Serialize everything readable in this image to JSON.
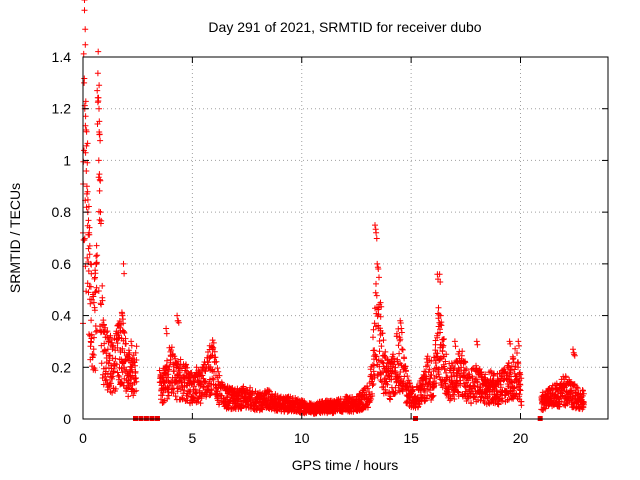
{
  "chart_data": {
    "type": "scatter",
    "title": "Day 291 of 2021, SRMTID for receiver dubo",
    "xlabel": "GPS time / hours",
    "ylabel": "SRMTID / TECUs",
    "xlim": [
      0,
      24
    ],
    "ylim": [
      0,
      1.4
    ],
    "xticks": [
      0,
      5,
      10,
      15,
      20
    ],
    "xtick_labels": [
      "0",
      "5",
      "10",
      "15",
      "20"
    ],
    "yticks": [
      0,
      0.2,
      0.4,
      0.6,
      0.8,
      1.0,
      1.2,
      1.4
    ],
    "ytick_labels": [
      "0",
      "0.2",
      "0.4",
      "0.6",
      "0.8",
      "1",
      "1.2",
      "1.4"
    ],
    "grid": true,
    "marker": "+",
    "color": "#ff0000",
    "series": [
      {
        "name": "SRMTID",
        "trend": [
          [
            0.0,
            0.62
          ],
          [
            0.05,
            1.25
          ],
          [
            0.12,
            0.95
          ],
          [
            0.2,
            0.75
          ],
          [
            0.3,
            0.55
          ],
          [
            0.4,
            0.42
          ],
          [
            0.5,
            0.35
          ],
          [
            0.6,
            0.45
          ],
          [
            0.7,
            1.15
          ],
          [
            0.8,
            0.6
          ],
          [
            0.9,
            0.3
          ],
          [
            1.0,
            0.25
          ],
          [
            1.2,
            0.23
          ],
          [
            1.4,
            0.22
          ],
          [
            1.6,
            0.26
          ],
          [
            1.8,
            0.3
          ],
          [
            2.0,
            0.2
          ],
          [
            2.2,
            0.17
          ],
          [
            2.4,
            0.2
          ],
          [
            3.5,
            0.13
          ],
          [
            3.8,
            0.14
          ],
          [
            4.0,
            0.22
          ],
          [
            4.2,
            0.17
          ],
          [
            4.5,
            0.16
          ],
          [
            4.8,
            0.14
          ],
          [
            5.0,
            0.12
          ],
          [
            5.2,
            0.14
          ],
          [
            5.4,
            0.13
          ],
          [
            5.6,
            0.16
          ],
          [
            5.8,
            0.2
          ],
          [
            6.0,
            0.22
          ],
          [
            6.2,
            0.12
          ],
          [
            6.5,
            0.09
          ],
          [
            7.0,
            0.08
          ],
          [
            7.5,
            0.09
          ],
          [
            8.0,
            0.07
          ],
          [
            8.5,
            0.08
          ],
          [
            9.0,
            0.06
          ],
          [
            9.5,
            0.06
          ],
          [
            10.0,
            0.05
          ],
          [
            10.5,
            0.04
          ],
          [
            11.0,
            0.05
          ],
          [
            11.5,
            0.05
          ],
          [
            12.0,
            0.06
          ],
          [
            12.5,
            0.06
          ],
          [
            13.0,
            0.09
          ],
          [
            13.2,
            0.15
          ],
          [
            13.4,
            0.4
          ],
          [
            13.6,
            0.28
          ],
          [
            13.8,
            0.2
          ],
          [
            14.0,
            0.15
          ],
          [
            14.2,
            0.18
          ],
          [
            14.4,
            0.25
          ],
          [
            14.6,
            0.2
          ],
          [
            14.8,
            0.12
          ],
          [
            15.0,
            0.09
          ],
          [
            15.2,
            0.08
          ],
          [
            15.5,
            0.12
          ],
          [
            15.8,
            0.18
          ],
          [
            16.0,
            0.15
          ],
          [
            16.2,
            0.3
          ],
          [
            16.4,
            0.25
          ],
          [
            16.6,
            0.18
          ],
          [
            16.8,
            0.15
          ],
          [
            17.0,
            0.16
          ],
          [
            17.3,
            0.2
          ],
          [
            17.6,
            0.12
          ],
          [
            18.0,
            0.15
          ],
          [
            18.3,
            0.12
          ],
          [
            18.6,
            0.13
          ],
          [
            19.0,
            0.12
          ],
          [
            19.3,
            0.14
          ],
          [
            19.6,
            0.16
          ],
          [
            19.8,
            0.2
          ],
          [
            20.0,
            0.12
          ],
          [
            21.0,
            0.07
          ],
          [
            21.5,
            0.09
          ],
          [
            21.8,
            0.1
          ],
          [
            22.0,
            0.12
          ],
          [
            22.3,
            0.1
          ],
          [
            22.6,
            0.09
          ],
          [
            22.8,
            0.08
          ]
        ],
        "spikes": [
          [
            0.05,
            1.3
          ],
          [
            0.08,
            1.2
          ],
          [
            0.12,
            1.03
          ],
          [
            0.18,
            0.9
          ],
          [
            0.22,
            0.8
          ],
          [
            0.28,
            0.72
          ],
          [
            0.35,
            0.6
          ],
          [
            0.5,
            0.45
          ],
          [
            0.65,
            1.27
          ],
          [
            0.7,
            1.23
          ],
          [
            0.75,
            1.1
          ],
          [
            0.72,
            1.0
          ],
          [
            0.8,
            0.8
          ],
          [
            0.6,
            0.63
          ],
          [
            1.8,
            0.4
          ],
          [
            1.85,
            0.6
          ],
          [
            2.2,
            0.3
          ],
          [
            3.8,
            0.35
          ],
          [
            4.3,
            0.4
          ],
          [
            4.35,
            0.38
          ],
          [
            5.9,
            0.28
          ],
          [
            13.35,
            0.75
          ],
          [
            13.4,
            0.72
          ],
          [
            13.45,
            0.6
          ],
          [
            13.5,
            0.58
          ],
          [
            13.6,
            0.45
          ],
          [
            14.5,
            0.38
          ],
          [
            14.55,
            0.35
          ],
          [
            16.2,
            0.56
          ],
          [
            16.3,
            0.56
          ],
          [
            16.25,
            0.43
          ],
          [
            16.35,
            0.4
          ],
          [
            17.0,
            0.3
          ],
          [
            18.0,
            0.3
          ],
          [
            19.5,
            0.3
          ],
          [
            19.9,
            0.3
          ],
          [
            22.4,
            0.27
          ],
          [
            22.45,
            0.25
          ]
        ],
        "data_gaps": [
          2.4,
          3.4,
          15.2,
          20.9
        ],
        "x_range": [
          0,
          22.9
        ]
      }
    ]
  }
}
